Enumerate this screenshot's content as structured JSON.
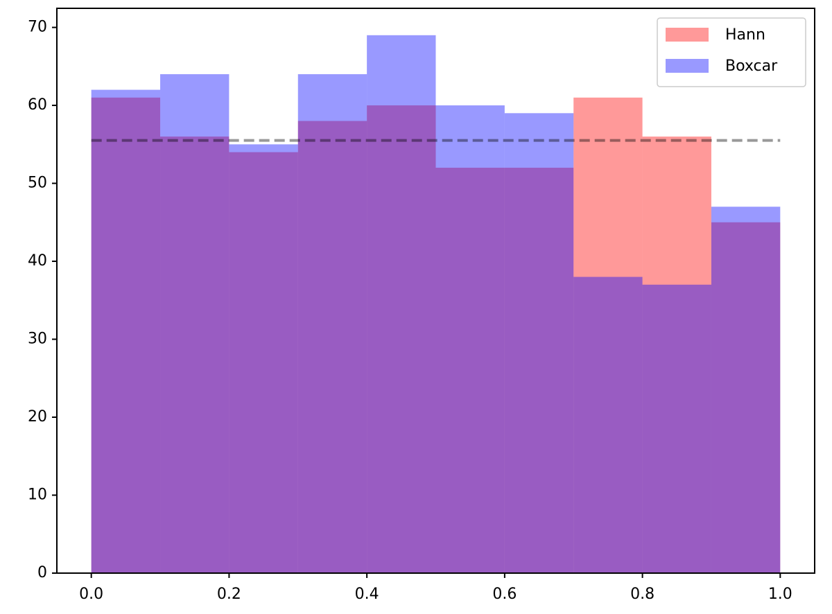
{
  "chart_data": {
    "type": "histogram",
    "bins": [
      0,
      0.1,
      0.2,
      0.3,
      0.4,
      0.5,
      0.6,
      0.7,
      0.8,
      0.9,
      1.0
    ],
    "series": [
      {
        "name": "Hann",
        "color": "#ff0000",
        "values": [
          61,
          56,
          54,
          58,
          60,
          52,
          52,
          61,
          56,
          45
        ]
      },
      {
        "name": "Boxcar",
        "color": "#0000ff",
        "values": [
          62,
          64,
          55,
          64,
          69,
          60,
          59,
          38,
          37,
          47
        ]
      }
    ],
    "opacity": 0.4,
    "hline": {
      "y": 55.5,
      "color": "#000000",
      "opacity": 0.4,
      "dashed": true
    },
    "xlim": [
      -0.05,
      1.05
    ],
    "ylim": [
      0,
      72.45
    ],
    "xticks": [
      {
        "value": 0,
        "label": "0.0"
      },
      {
        "value": 0.2,
        "label": "0.2"
      },
      {
        "value": 0.4,
        "label": "0.4"
      },
      {
        "value": 0.6,
        "label": "0.6"
      },
      {
        "value": 0.8,
        "label": "0.8"
      },
      {
        "value": 1.0,
        "label": "1.0"
      }
    ],
    "yticks": [
      0,
      10,
      20,
      30,
      40,
      50,
      60,
      70
    ],
    "grid": false,
    "legend": "upper right"
  }
}
